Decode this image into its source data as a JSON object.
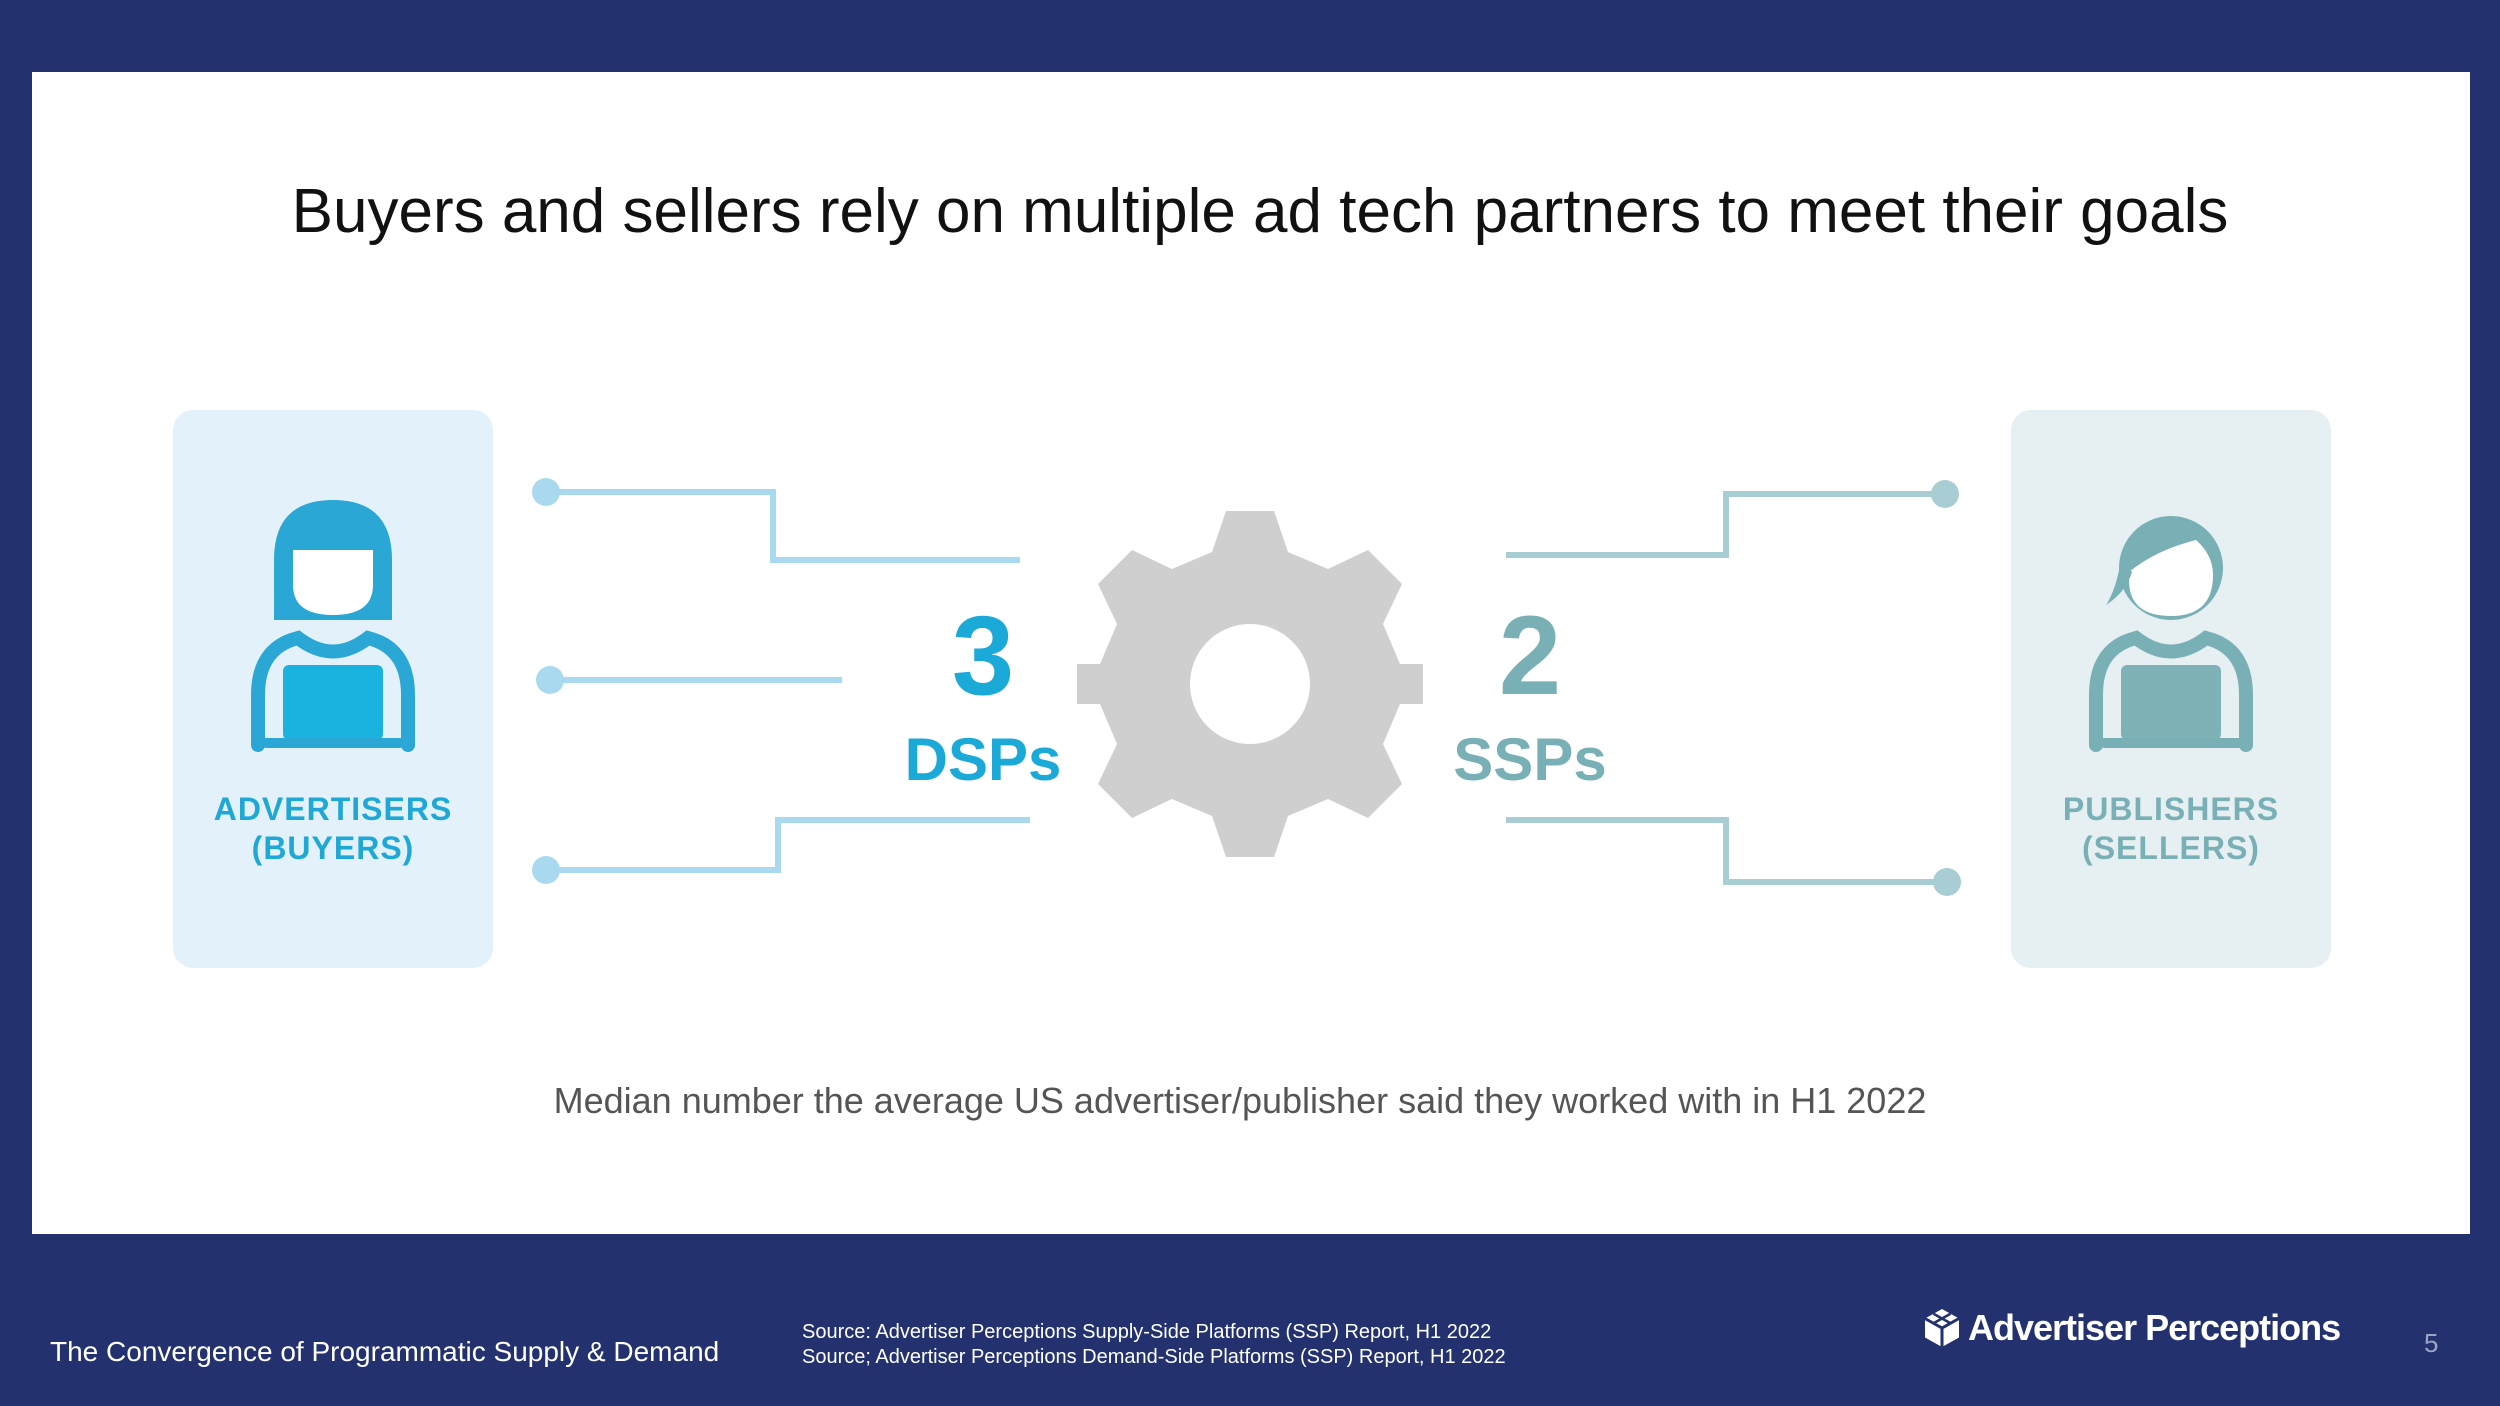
{
  "slide": {
    "title": "Buyers and sellers rely on multiple ad tech partners to meet their goals",
    "caption": "Median number the average US advertiser/publisher said they worked with in H1 2022",
    "page_number": "5"
  },
  "buyers": {
    "label_line1": "ADVERTISERS",
    "label_line2": "(BUYERS)",
    "color": "#1fa8d6"
  },
  "sellers": {
    "label_line1": "PUBLISHERS",
    "label_line2": "(SELLERS)",
    "color": "#78b0b6"
  },
  "stats": {
    "dsp": {
      "value": "3",
      "unit": "DSPs"
    },
    "ssp": {
      "value": "2",
      "unit": "SSPs"
    }
  },
  "footer": {
    "title": "The Convergence of Programmatic Supply & Demand",
    "source_line1": "Source: Advertiser Perceptions Supply-Side Platforms (SSP) Report, H1 2022",
    "source_line2": "Source; Advertiser Perceptions Demand-Side Platforms (SSP) Report, H1 2022",
    "logo_text": "Advertiser Perceptions",
    "logo_icon": "cube-icon"
  },
  "colors": {
    "background": "#23326e",
    "buyer_accent": "#1ba9d8",
    "seller_accent": "#78b0b6",
    "gear": "#d0cfd0"
  }
}
